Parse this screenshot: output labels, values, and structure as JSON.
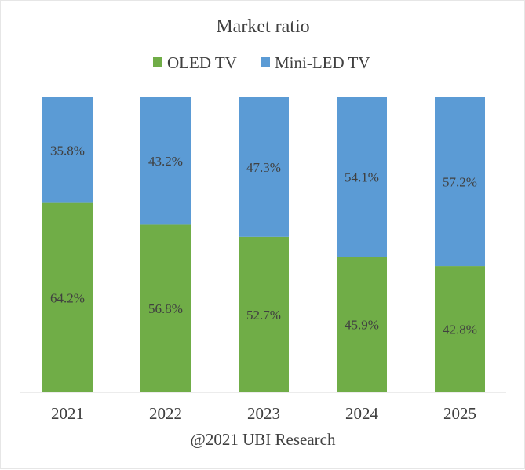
{
  "chart_data": {
    "type": "bar",
    "stacked": true,
    "title": "Market ratio",
    "categories": [
      "2021",
      "2022",
      "2023",
      "2024",
      "2025"
    ],
    "series": [
      {
        "name": "OLED TV",
        "color": "#70ad47",
        "values": [
          64.2,
          56.8,
          52.7,
          45.9,
          42.8
        ],
        "labels": [
          "64.2%",
          "56.8%",
          "52.7%",
          "45.9%",
          "42.8%"
        ]
      },
      {
        "name": "Mini-LED TV",
        "color": "#5b9bd5",
        "values": [
          35.8,
          43.2,
          47.3,
          54.1,
          57.2
        ],
        "labels": [
          "35.8%",
          "43.2%",
          "47.3%",
          "54.1%",
          "57.2%"
        ]
      }
    ],
    "ylim": [
      0,
      100
    ],
    "xlabel": "",
    "ylabel": "",
    "legend": "top-center",
    "grid": false
  },
  "source": "@2021 UBI Research"
}
